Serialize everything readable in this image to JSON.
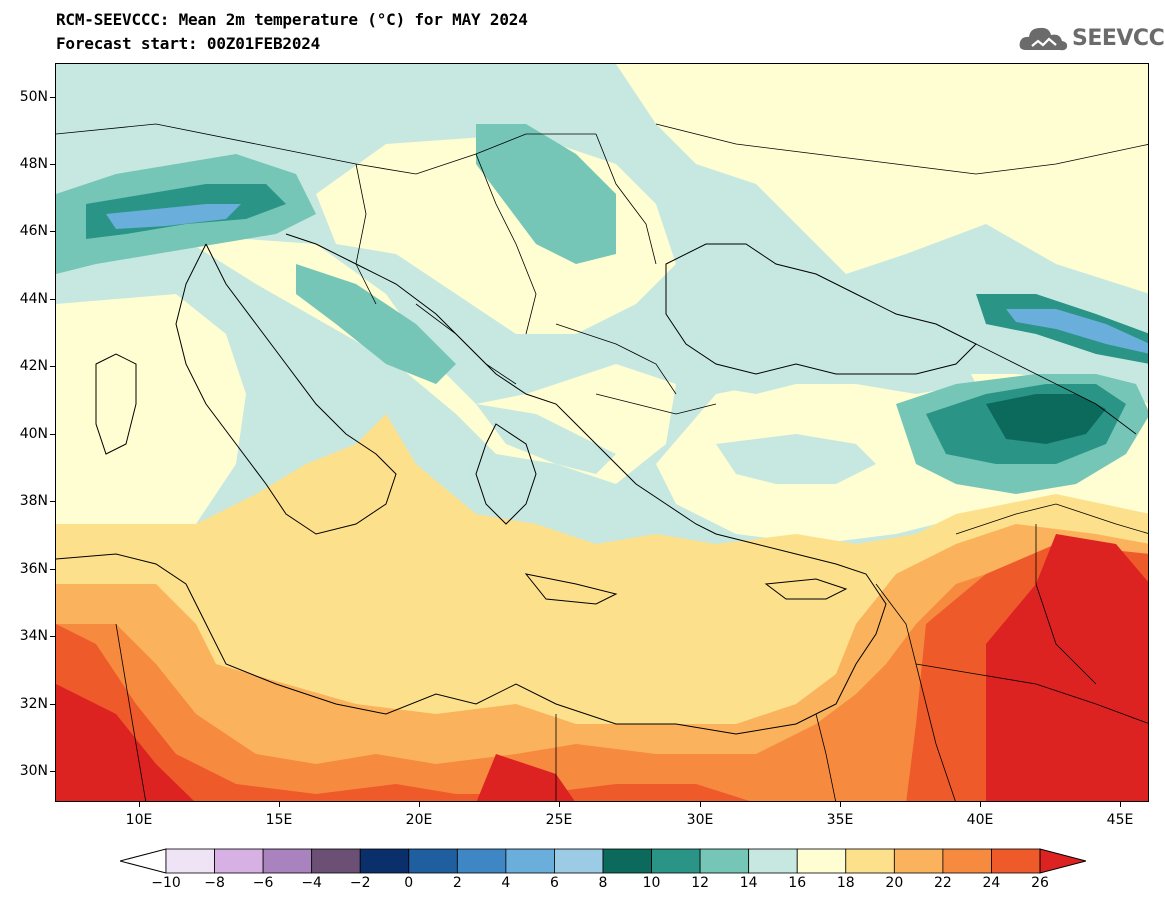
{
  "header": {
    "title": "RCM-SEEVCCC: Mean 2m temperature (°C) for MAY 2024",
    "subtitle": "Forecast start: 00Z01FEB2024",
    "logo_text": "SEEVCCC"
  },
  "map": {
    "lon_range": [
      7,
      46
    ],
    "lat_range": [
      29,
      51
    ],
    "lat_labels": [
      "50N",
      "48N",
      "46N",
      "44N",
      "42N",
      "40N",
      "38N",
      "36N",
      "34N",
      "32N",
      "30N"
    ],
    "lon_labels": [
      "10E",
      "15E",
      "20E",
      "25E",
      "30E",
      "35E",
      "40E",
      "45E"
    ]
  },
  "legend": {
    "labels": [
      "−10",
      "−8",
      "−6",
      "−4",
      "−2",
      "0",
      "2",
      "4",
      "6",
      "8",
      "10",
      "12",
      "14",
      "16",
      "18",
      "20",
      "22",
      "24",
      "26"
    ],
    "colors": [
      "#ffffff",
      "#efe4f6",
      "#d7b1e3",
      "#a883be",
      "#6b4f74",
      "#0a2f6b",
      "#1f5fa0",
      "#3f86c4",
      "#6aaedb",
      "#9ccbe6",
      "#0c6a5c",
      "#2a9487",
      "#75c6b6",
      "#c6e8e1",
      "#fffdd2",
      "#fde08c",
      "#fbb25c",
      "#f68a3f",
      "#ef5a2a",
      "#dd2222"
    ]
  }
}
